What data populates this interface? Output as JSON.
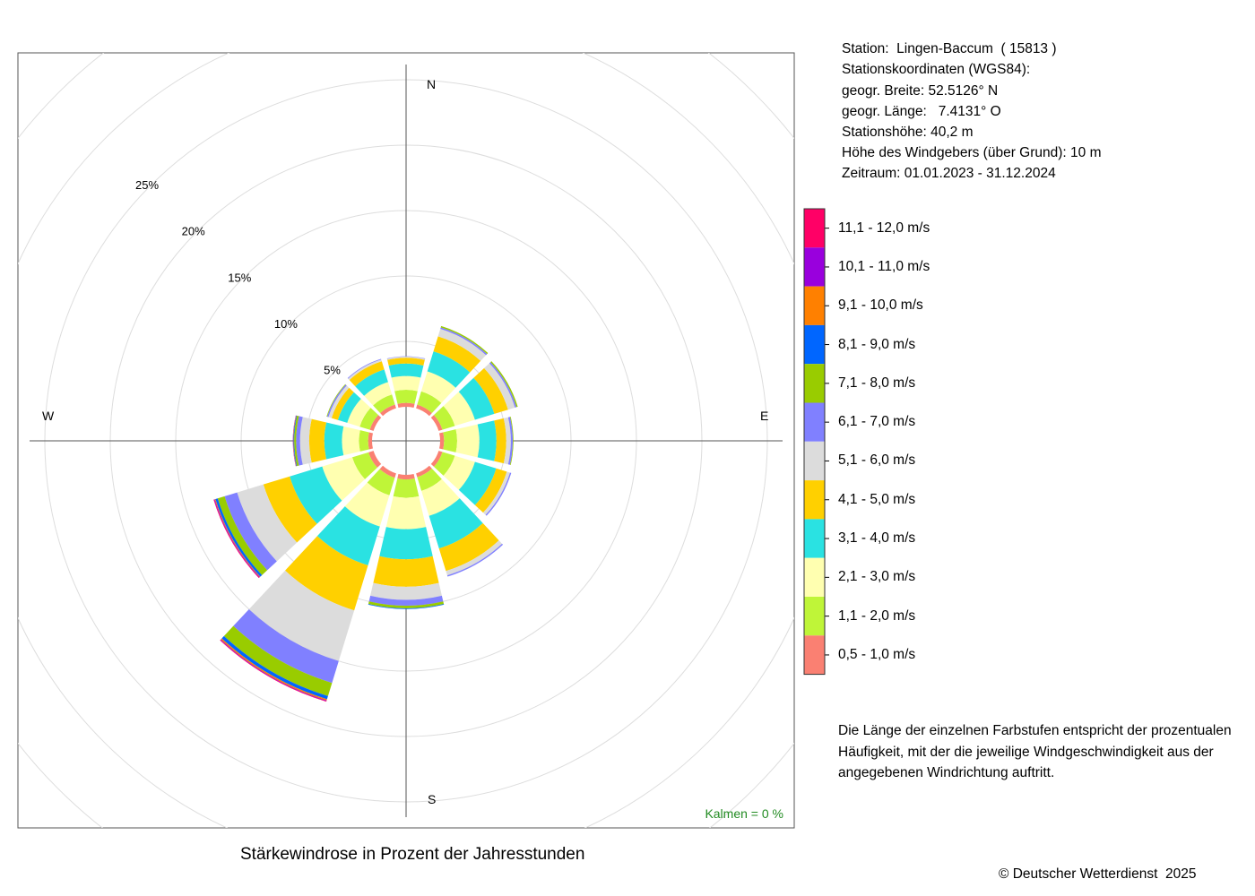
{
  "info": {
    "station": "Station:  Lingen-Baccum  ( 15813 )",
    "coords_heading": "Stationskoordinaten (WGS84):",
    "latitude": "geogr. Breite: 52.5126° N",
    "longitude": "geogr. Länge:   7.4131° O",
    "elevation": "Stationshöhe: 40,2 m",
    "sensor_height": "Höhe des Windgebers (über Grund): 10 m",
    "period": "Zeitraum: 01.01.2023 - 31.12.2024"
  },
  "note": "Die Länge der einzelnen Farbstufen entspricht der prozentualen Häufigkeit, mit der die jeweilige Windgeschwindigkeit aus der angegebenen Windrichtung auftritt.",
  "footer": {
    "title": "Stärkewindrose in Prozent der Jahresstunden",
    "copyright": "© Deutscher Wetterdienst  2025"
  },
  "chart_data": {
    "type": "windrose",
    "title": "Stärkewindrose in Prozent der Jahresstunden",
    "unit": "% der Jahresstunden",
    "calm_label": "Kalmen  =  0 %",
    "compass": {
      "n": "N",
      "e": "E",
      "s": "S",
      "w": "W"
    },
    "radial_ticks": [
      5,
      10,
      15,
      20,
      25
    ],
    "radial_tick_labels": [
      "5%",
      "10%",
      "15%",
      "20%",
      "25%"
    ],
    "rmax": 25.5,
    "sectors_deg": [
      0,
      30,
      60,
      90,
      120,
      150,
      180,
      210,
      240,
      270,
      300,
      330
    ],
    "speed_classes": [
      {
        "label": "0,5 - 1,0 m/s",
        "color": "#fa8072"
      },
      {
        "label": "1,1 - 2,0 m/s",
        "color": "#bff538"
      },
      {
        "label": "2,1 - 3,0 m/s",
        "color": "#ffffb0"
      },
      {
        "label": "3,1 - 4,0 m/s",
        "color": "#2ae2e2"
      },
      {
        "label": "4,1 - 5,0 m/s",
        "color": "#ffd000"
      },
      {
        "label": "5,1 - 6,0 m/s",
        "color": "#dcdcdc"
      },
      {
        "label": "6,1 - 7,0 m/s",
        "color": "#8080ff"
      },
      {
        "label": "7,1 - 8,0 m/s",
        "color": "#99cc00"
      },
      {
        "label": "8,1 - 9,0 m/s",
        "color": "#0066ff"
      },
      {
        "label": "9,1 - 10,0 m/s",
        "color": "#ff8000"
      },
      {
        "label": "10,1 - 11,0 m/s",
        "color": "#9900dd"
      },
      {
        "label": "11,1 - 12,0 m/s",
        "color": "#ff0066"
      }
    ],
    "frequencies": [
      [
        0.3,
        1.0,
        1.05,
        0.95,
        0.45,
        0.08,
        0.03,
        0,
        0,
        0,
        0,
        0
      ],
      [
        0.3,
        1.05,
        1.6,
        1.6,
        1.2,
        0.6,
        0.12,
        0.1,
        0,
        0,
        0,
        0
      ],
      [
        0.3,
        1.0,
        1.6,
        1.55,
        1.1,
        0.55,
        0.12,
        0.1,
        0,
        0,
        0,
        0
      ],
      [
        0.3,
        1.0,
        1.7,
        1.3,
        0.75,
        0.35,
        0.15,
        0.05,
        0,
        0,
        0,
        0
      ],
      [
        0.3,
        1.0,
        1.6,
        1.7,
        0.85,
        0.25,
        0.1,
        0,
        0,
        0,
        0,
        0
      ],
      [
        0.3,
        1.1,
        2.0,
        2.6,
        1.8,
        0.35,
        0.1,
        0,
        0,
        0,
        0,
        0
      ],
      [
        0.35,
        1.4,
        2.4,
        2.3,
        2.1,
        1.0,
        0.45,
        0.2,
        0.05,
        0,
        0,
        0
      ],
      [
        0.35,
        1.4,
        2.5,
        3.1,
        3.6,
        4.05,
        1.75,
        1.05,
        0.25,
        0.1,
        0.05,
        0.05
      ],
      [
        0.4,
        1.3,
        2.4,
        2.6,
        2.1,
        2.1,
        1.0,
        0.55,
        0.18,
        0.05,
        0.05,
        0.05
      ],
      [
        0.3,
        0.7,
        1.3,
        1.35,
        1.15,
        0.7,
        0.3,
        0.15,
        0.05,
        0.03,
        0.02,
        0
      ],
      [
        0.3,
        0.8,
        1.0,
        0.75,
        0.5,
        0.25,
        0.1,
        0.05,
        0,
        0,
        0,
        0
      ],
      [
        0.3,
        0.8,
        1.0,
        1.0,
        0.65,
        0.15,
        0.05,
        0,
        0,
        0,
        0,
        0
      ]
    ]
  }
}
